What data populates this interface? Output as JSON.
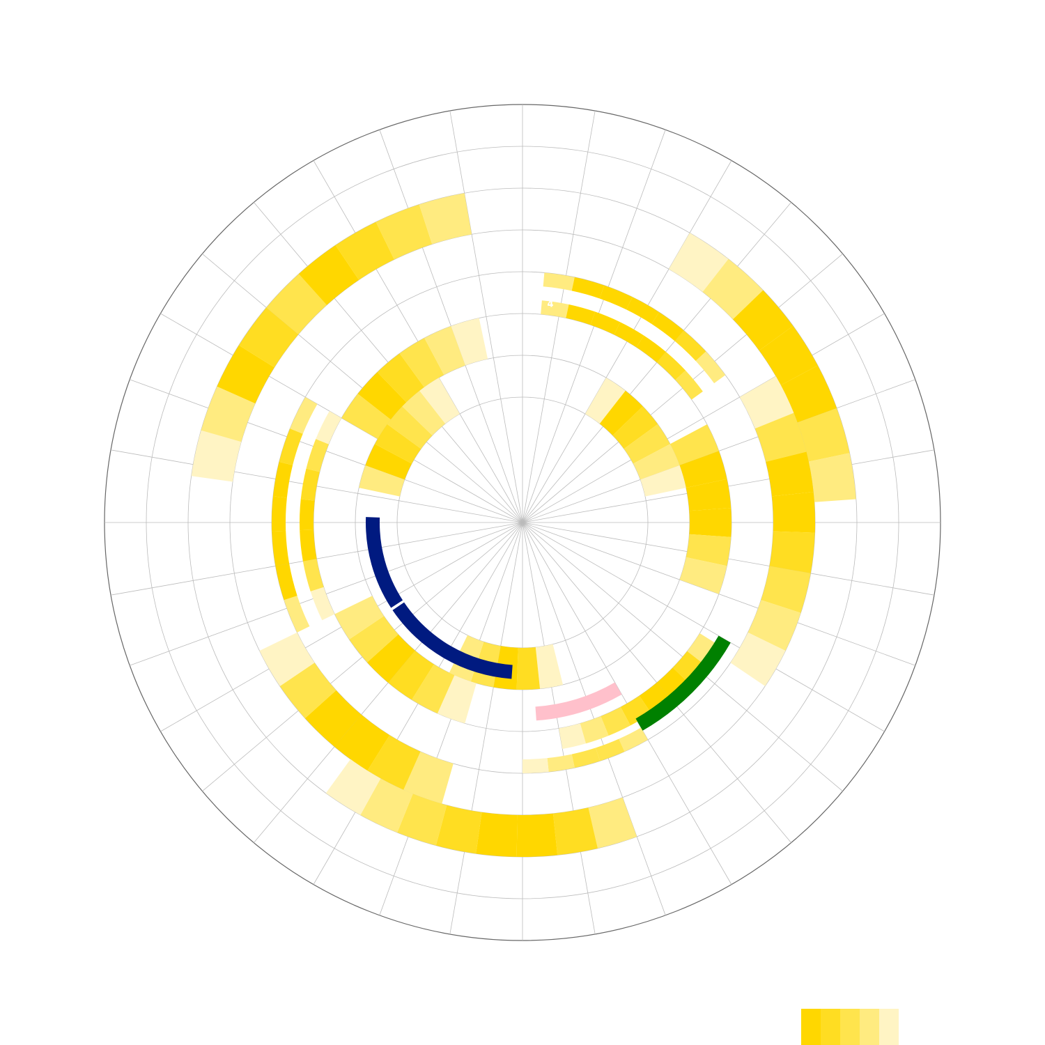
{
  "chart_data": {
    "type": "radial-heatmap",
    "rlim": [
      0,
      600
    ],
    "rings": [
      180,
      240,
      300,
      360,
      420,
      480,
      540,
      600
    ],
    "spokes": [
      0,
      10,
      20,
      30,
      40,
      50,
      60,
      70,
      80,
      90,
      100,
      110,
      120,
      130,
      140,
      150,
      160,
      170,
      180,
      190,
      200,
      210,
      220,
      230,
      240,
      250,
      260,
      270,
      280,
      290,
      300,
      310,
      320,
      330,
      340,
      350
    ],
    "colors": [
      "#ffd700",
      "#ffdd22",
      "#ffe44d",
      "#ffeb80",
      "#fff4c4"
    ],
    "tracks": [
      {
        "r": [
          420,
          480
        ],
        "start": 278,
        "step": 8,
        "values": [
          1,
          2,
          5,
          4,
          3,
          5,
          4,
          3,
          2
        ]
      },
      {
        "r": [
          420,
          480
        ],
        "start": 30,
        "step": 8,
        "values": [
          1,
          2,
          5,
          5,
          5,
          3,
          2
        ]
      },
      {
        "r": [
          360,
          420
        ],
        "start": 60,
        "step": 8,
        "values": [
          1,
          3,
          5,
          5,
          4,
          3,
          2,
          1
        ]
      },
      {
        "r": [
          240,
          300
        ],
        "start": 62,
        "step": 8,
        "values": [
          3,
          5,
          5,
          5,
          3,
          2
        ]
      },
      {
        "r": [
          180,
          240
        ],
        "start": 30,
        "step": 8,
        "values": [
          1,
          5,
          4,
          3,
          2,
          1
        ]
      },
      {
        "r": [
          340,
          360
        ],
        "start": 5,
        "step": 7,
        "values": [
          2,
          5,
          5,
          5,
          5,
          4,
          2
        ]
      },
      {
        "r": [
          300,
          320
        ],
        "start": 5,
        "step": 7,
        "values": [
          2,
          5,
          5,
          5,
          5,
          4,
          3
        ]
      },
      {
        "r": [
          340,
          360
        ],
        "start": 244,
        "step": 8,
        "values": [
          2,
          5,
          5,
          5,
          5,
          4,
          2
        ]
      },
      {
        "r": [
          300,
          320
        ],
        "start": 244,
        "step": 8,
        "values": [
          1,
          3,
          5,
          5,
          4,
          3,
          1
        ]
      },
      {
        "r": [
          240,
          300
        ],
        "start": 300,
        "step": 8,
        "values": [
          3,
          5,
          4,
          3,
          2,
          1
        ]
      },
      {
        "r": [
          180,
          240
        ],
        "start": 282,
        "step": 8,
        "values": [
          2,
          5,
          4,
          3,
          2,
          1
        ]
      },
      {
        "r": [
          180,
          240
        ],
        "start": 166,
        "step": 8,
        "values": [
          1,
          4,
          5,
          3,
          2
        ]
      },
      {
        "r": [
          240,
          300
        ],
        "start": 196,
        "step": 8,
        "values": [
          1,
          3,
          4,
          5,
          3,
          2
        ]
      },
      {
        "r": [
          360,
          420
        ],
        "start": 196,
        "step": 8,
        "values": [
          2,
          4,
          5,
          5,
          3,
          1
        ]
      },
      {
        "r": [
          420,
          480
        ],
        "start": 160,
        "step": 7,
        "values": [
          2,
          4,
          5,
          5,
          4,
          3,
          2,
          1
        ]
      },
      {
        "r": [
          300,
          330
        ],
        "start": 122,
        "step": 6,
        "values": [
          2,
          4,
          5,
          5,
          4,
          3,
          2,
          1
        ]
      },
      {
        "r": [
          340,
          360
        ],
        "start": 150,
        "step": 6,
        "values": [
          2,
          3,
          3,
          2,
          1
        ]
      }
    ],
    "arcs": [
      {
        "color": "#001a80",
        "r": [
          205,
          225
        ],
        "start": 184,
        "end": 236
      },
      {
        "color": "#001a80",
        "r": [
          205,
          225
        ],
        "start": 237,
        "end": 272
      },
      {
        "color": "#ffc0cb",
        "r": [
          265,
          285
        ],
        "start": 150,
        "end": 176
      },
      {
        "color": "#008000",
        "r": [
          325,
          345
        ],
        "start": 120,
        "end": 150
      }
    ],
    "annotations": [
      {
        "text": "4"
      }
    ]
  }
}
